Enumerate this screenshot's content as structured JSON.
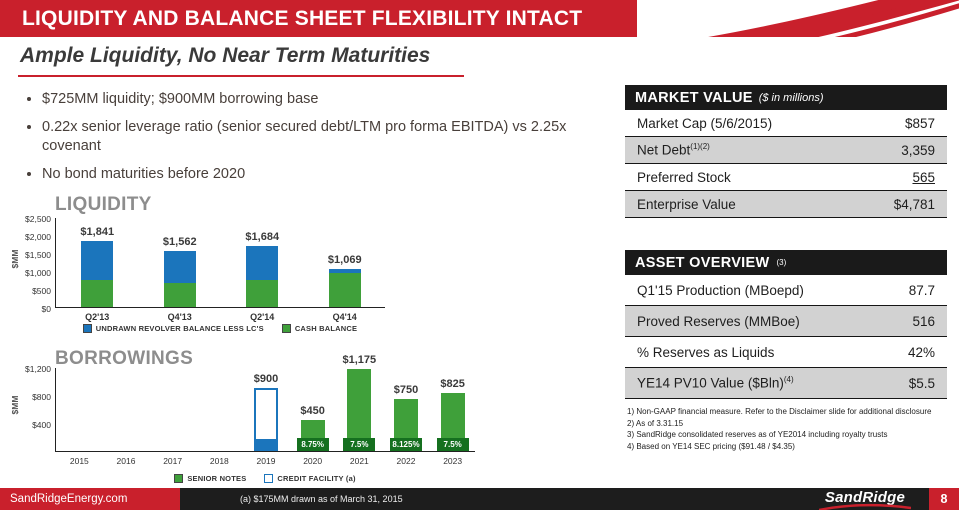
{
  "meta": {
    "accent_red": "#C9202C",
    "bar_green": "#3FA03A",
    "bar_blue": "#1B75BC",
    "rate_green": "#15701F",
    "row_gray": "#D2D2D2",
    "header_black": "#1A1A1A"
  },
  "header": {
    "title": "LIQUIDITY AND BALANCE SHEET FLEXIBILITY INTACT"
  },
  "intro": {
    "subtitle": "Ample Liquidity, No Near Term Maturities",
    "bullets": [
      "$725MM liquidity; $900MM borrowing base",
      "0.22x senior leverage ratio (senior secured debt/LTM pro forma EBITDA) vs 2.25x covenant",
      "No bond maturities before 2020"
    ]
  },
  "chart_data": [
    {
      "name": "liquidity",
      "type": "bar",
      "stacked": true,
      "title": "LIQUIDITY",
      "ylabel": "$MM",
      "ymax": 2500,
      "yticks": [
        "$2,500",
        "$2,000",
        "$1,500",
        "$1,000",
        "$500",
        "$0"
      ],
      "categories": [
        "Q2'13",
        "Q4'13",
        "Q2'14",
        "Q4'14"
      ],
      "totals": [
        1841,
        1562,
        1684,
        1069
      ],
      "total_labels": [
        "$1,841",
        "$1,562",
        "$1,684",
        "$1,069"
      ],
      "series": [
        {
          "name": "CASH BALANCE",
          "color_key": "green",
          "values": [
            740,
            670,
            760,
            950
          ]
        },
        {
          "name": "UNDRAWN REVOLVER BALANCE LESS LC'S",
          "color_key": "blue",
          "values": [
            1101,
            892,
            924,
            119
          ]
        }
      ],
      "legend": [
        {
          "label": "UNDRAWN REVOLVER BALANCE LESS LC'S",
          "color_key": "blue"
        },
        {
          "label": "CASH BALANCE",
          "color_key": "green"
        }
      ]
    },
    {
      "name": "borrowings",
      "type": "bar",
      "title": "BORROWINGS",
      "ylabel": "$MM",
      "ymax": 1200,
      "yticks": [
        "$1,200",
        "$800",
        "$400"
      ],
      "categories": [
        "2015",
        "2016",
        "2017",
        "2018",
        "2019",
        "2020",
        "2021",
        "2022",
        "2023"
      ],
      "bars": [
        {
          "year": "2019",
          "kind": "credit_facility",
          "value": 900,
          "drawn": 175,
          "label": "$900"
        },
        {
          "year": "2020",
          "kind": "senior_notes",
          "value": 450,
          "label": "$450",
          "rate": "8.75%"
        },
        {
          "year": "2021",
          "kind": "senior_notes",
          "value": 1175,
          "label": "$1,175",
          "rate": "7.5%"
        },
        {
          "year": "2022",
          "kind": "senior_notes",
          "value": 750,
          "label": "$750",
          "rate": "8.125%"
        },
        {
          "year": "2023",
          "kind": "senior_notes",
          "value": 825,
          "label": "$825",
          "rate": "7.5%"
        }
      ],
      "legend": [
        {
          "label": "SENIOR NOTES",
          "color_key": "green"
        },
        {
          "label": "CREDIT FACILITY (a)",
          "color_key": "credit"
        }
      ]
    }
  ],
  "market_value": {
    "title": "MARKET VALUE",
    "subtitle": "($ in millions)",
    "rows": [
      {
        "label": "Market Cap (5/6/2015)",
        "sup": "",
        "value": "$857",
        "underline": false
      },
      {
        "label": "Net Debt",
        "sup": "(1)(2)",
        "value": "3,359",
        "underline": false
      },
      {
        "label": "Preferred Stock",
        "sup": "",
        "value": "565",
        "underline": true
      },
      {
        "label": "Enterprise Value",
        "sup": "",
        "value": "$4,781",
        "underline": false
      }
    ]
  },
  "asset_overview": {
    "title": "ASSET OVERVIEW",
    "sup": "(3)",
    "rows": [
      {
        "label": "Q1'15 Production (MBoepd)",
        "sup": "",
        "value": "87.7",
        "underline": false
      },
      {
        "label": "Proved Reserves (MMBoe)",
        "sup": "",
        "value": "516",
        "underline": false
      },
      {
        "label": "% Reserves as Liquids",
        "sup": "",
        "value": "42%",
        "underline": false
      },
      {
        "label": "YE14 PV10 Value ($Bln)",
        "sup": "(4)",
        "value": "$5.5",
        "underline": false
      }
    ]
  },
  "footnotes": [
    "1) Non-GAAP financial measure. Refer to the Disclaimer slide for additional disclosure",
    "2) As of 3.31.15",
    "3) SandRidge consolidated reserves as of YE2014 including royalty trusts",
    "4) Based on YE14 SEC pricing ($91.48 / $4.35)"
  ],
  "footer": {
    "website": "SandRidgeEnergy.com",
    "note": "(a) $175MM drawn as of March 31, 2015",
    "logo": "SandRidge",
    "page": "8"
  }
}
